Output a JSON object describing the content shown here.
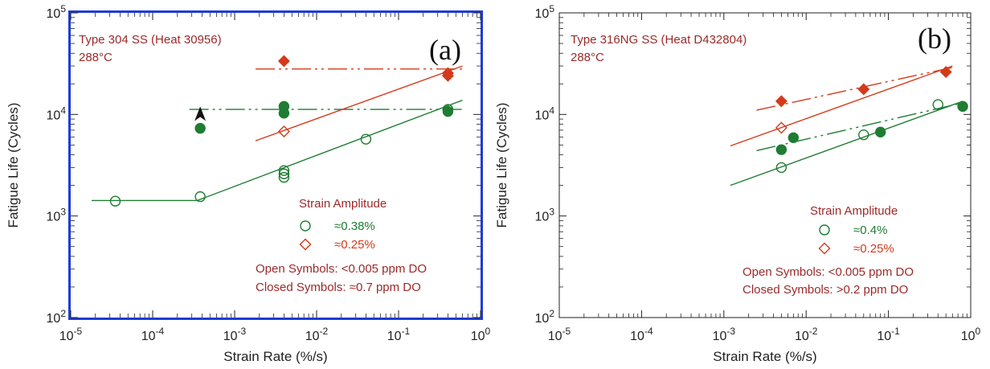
{
  "chart_data": [
    {
      "type": "scatter",
      "panel_label": "(a)",
      "material": "Type 304 SS (Heat 30956)",
      "temperature": "288°C",
      "xlabel": "Strain Rate (%/s)",
      "ylabel": "Fatigue Life (Cycles)",
      "xscale": "log",
      "yscale": "log",
      "xlim": [
        1e-05,
        1
      ],
      "ylim": [
        100,
        100000
      ],
      "x_ticks": [
        {
          "base": "10",
          "exp": "-5"
        },
        {
          "base": "10",
          "exp": "-4"
        },
        {
          "base": "10",
          "exp": "-3"
        },
        {
          "base": "10",
          "exp": "-2"
        },
        {
          "base": "10",
          "exp": "-1"
        },
        {
          "base": "10",
          "exp": "0"
        }
      ],
      "y_ticks": [
        {
          "base": "10",
          "exp": "2"
        },
        {
          "base": "10",
          "exp": "3"
        },
        {
          "base": "10",
          "exp": "4"
        },
        {
          "base": "10",
          "exp": "5"
        }
      ],
      "frame_color": "#1f3bd6",
      "legend": {
        "title": "Strain Amplitude",
        "entries": [
          {
            "label": "≈0.38%",
            "color": "#1e7d32",
            "symbol": "circle"
          },
          {
            "label": "≈0.25%",
            "color": "#d43a1a",
            "symbol": "diamond"
          }
        ],
        "notes": [
          "Open Symbols: <0.005 ppm DO",
          "Closed Symbols: ≈0.7 ppm DO"
        ]
      },
      "series": [
        {
          "color": "#1e7d32",
          "symbol": "circle",
          "filled": false,
          "points": [
            [
              3.5e-05,
              1400
            ],
            [
              0.00038,
              1550
            ],
            [
              0.004,
              2400
            ],
            [
              0.004,
              2600
            ],
            [
              0.004,
              2800
            ],
            [
              0.04,
              5700
            ],
            [
              0.4,
              11200
            ]
          ]
        },
        {
          "color": "#1e7d32",
          "symbol": "circle",
          "filled": true,
          "points": [
            [
              0.00038,
              7300
            ],
            [
              0.004,
              10300
            ],
            [
              0.004,
              12000
            ],
            [
              0.4,
              10700
            ]
          ]
        },
        {
          "color": "#d43a1a",
          "symbol": "diamond",
          "filled": false,
          "points": [
            [
              0.004,
              6800
            ]
          ]
        },
        {
          "color": "#d43a1a",
          "symbol": "diamond",
          "filled": true,
          "points": [
            [
              0.004,
              33500
            ],
            [
              0.4,
              25500
            ],
            [
              0.4,
              24000
            ]
          ]
        }
      ],
      "lines": [
        {
          "color": "#1e7d32",
          "style": "solid",
          "points": [
            [
              1.8e-05,
              1420
            ],
            [
              0.00035,
              1420
            ],
            [
              0.6,
              13800
            ]
          ]
        },
        {
          "color": "#1e7d32",
          "style": "dashdot",
          "points": [
            [
              0.00028,
              11200
            ],
            [
              0.6,
              11200
            ]
          ]
        },
        {
          "color": "#d43a1a",
          "style": "solid",
          "points": [
            [
              0.0018,
              5500
            ],
            [
              0.6,
              30000
            ]
          ]
        },
        {
          "color": "#d43a1a",
          "style": "dashdot",
          "points": [
            [
              0.0018,
              28000
            ],
            [
              0.6,
              28000
            ]
          ]
        }
      ],
      "markers": [
        {
          "type": "arrow-up",
          "x": 0.00038,
          "y": 9800,
          "color": "#111111"
        }
      ]
    },
    {
      "type": "scatter",
      "panel_label": "(b)",
      "material": "Type 316NG SS (Heat D432804)",
      "temperature": "288°C",
      "xlabel": "Strain Rate (%/s)",
      "ylabel": "Fatigue Life (Cycles)",
      "xscale": "log",
      "yscale": "log",
      "xlim": [
        1e-05,
        1
      ],
      "ylim": [
        100,
        100000
      ],
      "x_ticks": [
        {
          "base": "10",
          "exp": "-5"
        },
        {
          "base": "10",
          "exp": "-4"
        },
        {
          "base": "10",
          "exp": "-3"
        },
        {
          "base": "10",
          "exp": "-2"
        },
        {
          "base": "10",
          "exp": "-1"
        },
        {
          "base": "10",
          "exp": "0"
        }
      ],
      "y_ticks": [
        {
          "base": "10",
          "exp": "2"
        },
        {
          "base": "10",
          "exp": "3"
        },
        {
          "base": "10",
          "exp": "4"
        },
        {
          "base": "10",
          "exp": "5"
        }
      ],
      "frame_color": "#222222",
      "legend": {
        "title": "Strain Amplitude",
        "entries": [
          {
            "label": "≈0.4%",
            "color": "#1e7d32",
            "symbol": "circle"
          },
          {
            "label": "≈0.25%",
            "color": "#d43a1a",
            "symbol": "diamond"
          }
        ],
        "notes": [
          "Open Symbols: <0.005 ppm DO",
          "Closed Symbols: >0.2 ppm DO"
        ]
      },
      "series": [
        {
          "color": "#1e7d32",
          "symbol": "circle",
          "filled": false,
          "points": [
            [
              0.005,
              3000
            ],
            [
              0.05,
              6300
            ],
            [
              0.4,
              12500
            ]
          ]
        },
        {
          "color": "#1e7d32",
          "symbol": "circle",
          "filled": true,
          "points": [
            [
              0.005,
              4500
            ],
            [
              0.007,
              5900
            ],
            [
              0.08,
              6700
            ],
            [
              0.8,
              12000
            ]
          ]
        },
        {
          "color": "#d43a1a",
          "symbol": "diamond",
          "filled": false,
          "points": [
            [
              0.005,
              7400
            ]
          ]
        },
        {
          "color": "#d43a1a",
          "symbol": "diamond",
          "filled": true,
          "points": [
            [
              0.005,
              13500
            ],
            [
              0.05,
              17700
            ],
            [
              0.5,
              26200
            ]
          ]
        }
      ],
      "lines": [
        {
          "color": "#1e7d32",
          "style": "solid",
          "points": [
            [
              0.0012,
              2000
            ],
            [
              0.8,
              13500
            ]
          ]
        },
        {
          "color": "#1e7d32",
          "style": "dashdot",
          "points": [
            [
              0.0025,
              4400
            ],
            [
              0.8,
              13000
            ]
          ]
        },
        {
          "color": "#d43a1a",
          "style": "solid",
          "points": [
            [
              0.0012,
              4900
            ],
            [
              0.6,
              30000
            ]
          ]
        },
        {
          "color": "#d43a1a",
          "style": "dashdot",
          "points": [
            [
              0.0025,
              11000
            ],
            [
              0.6,
              29000
            ]
          ]
        }
      ],
      "markers": []
    }
  ]
}
